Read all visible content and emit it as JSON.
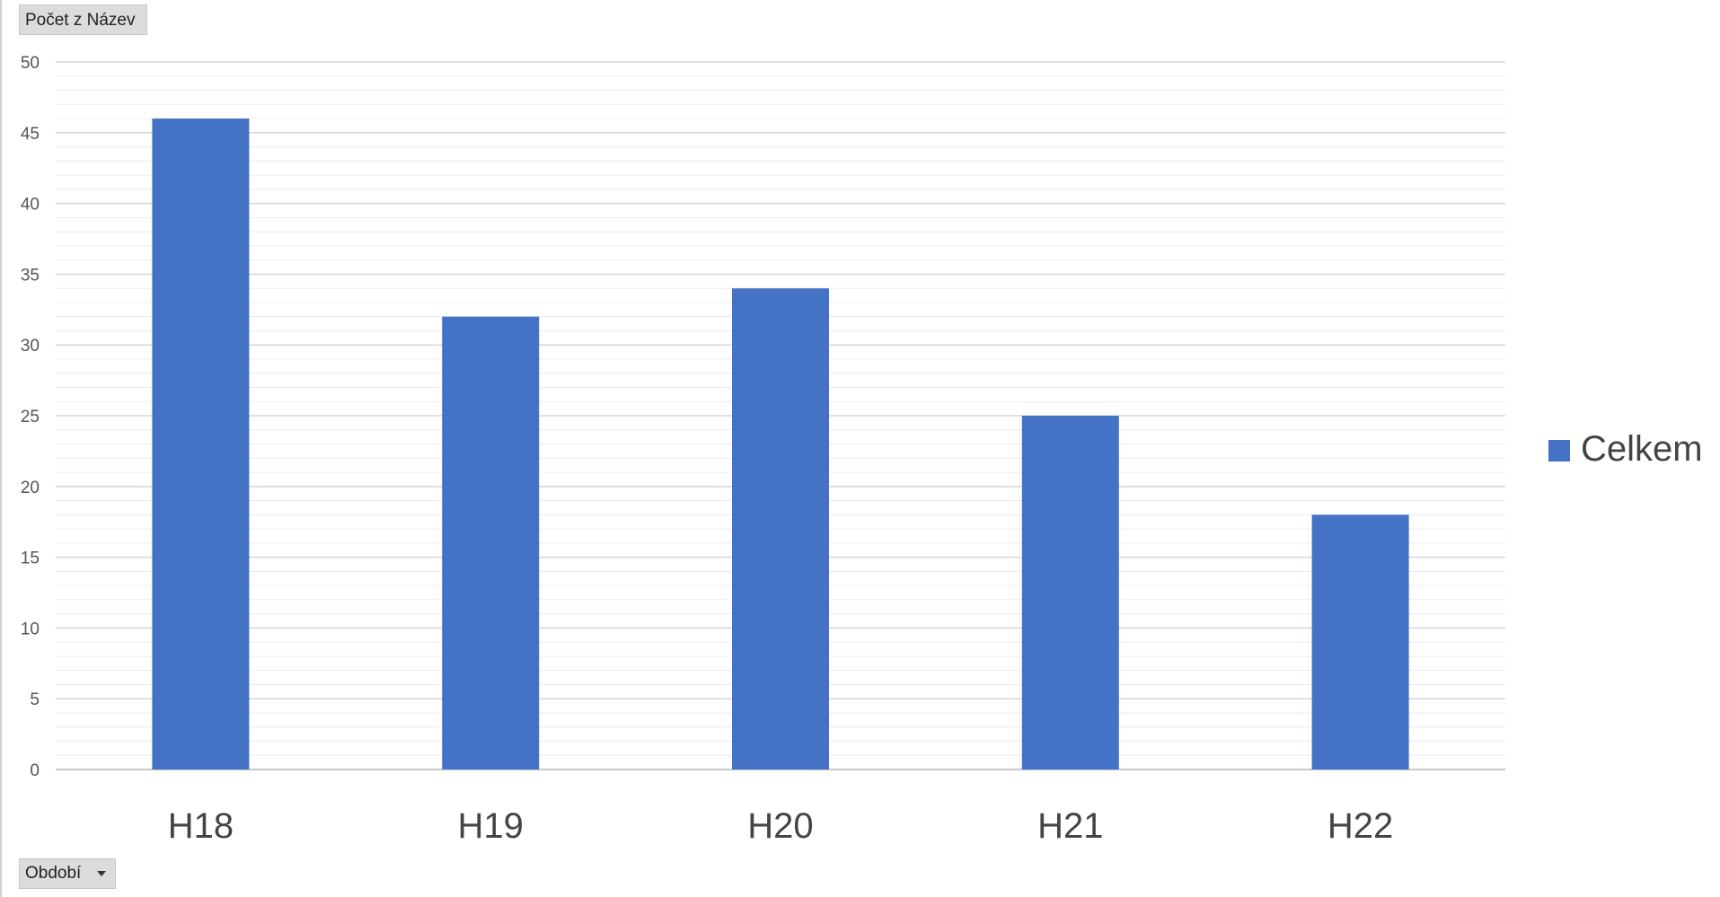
{
  "pivot_fields": {
    "value_field": "Počet z Název",
    "axis_field": "Období"
  },
  "icons": {
    "axis_field_dropdown": "chevron-down-icon"
  },
  "chart_data": {
    "type": "bar",
    "title": "",
    "xlabel": "",
    "ylabel": "",
    "categories": [
      "H18",
      "H19",
      "H20",
      "H21",
      "H22"
    ],
    "series": [
      {
        "name": "Celkem",
        "values": [
          46,
          32,
          34,
          25,
          18
        ],
        "color": "#4472C4"
      }
    ],
    "ylim": [
      0,
      50
    ],
    "yticks": [
      0,
      5,
      10,
      15,
      20,
      25,
      30,
      35,
      40,
      45,
      50
    ],
    "minor_grid_step": 1,
    "grid": true,
    "legend_position": "right"
  }
}
